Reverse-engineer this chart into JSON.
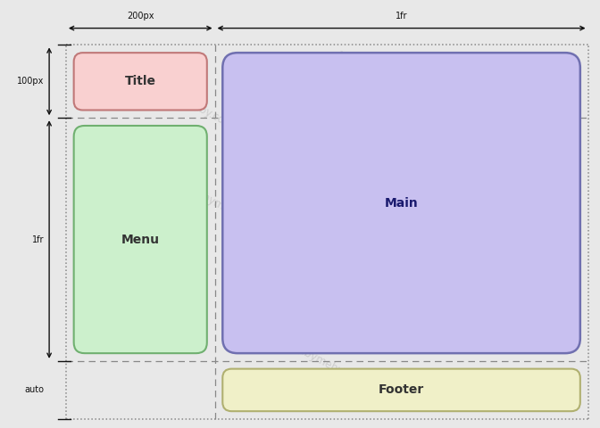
{
  "bg_color": "#e8e8e8",
  "title_color": "#f9d0d0",
  "title_border": "#c07878",
  "menu_color": "#ccf0cc",
  "menu_border": "#70b070",
  "main_color": "#c8c0f0",
  "main_border": "#7070b0",
  "footer_color": "#f0f0c8",
  "footer_border": "#b0b070",
  "dashed_color": "#888888",
  "dot_color": "#888888",
  "arrow_color": "#111111",
  "label_color": "#111111",
  "watermark_color": "#bbbbbb",
  "col1_label": "200px",
  "col2_label": "1fr",
  "row1_label": "100px",
  "row2_label": "1fr",
  "row3_label": "auto",
  "title_text": "Title",
  "menu_text": "Menu",
  "main_text": "Main",
  "footer_text": "Footer"
}
